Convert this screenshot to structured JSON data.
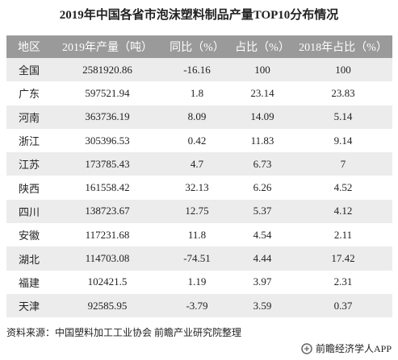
{
  "header": {
    "title": "2019年中国各省市泡沫塑料制品产量TOP10分布情况"
  },
  "table": {
    "columns": [
      "地区",
      "2019年产量（吨）",
      "同比（%）",
      "占比（%）",
      "2018年占比（%）"
    ],
    "rows": [
      [
        "全国",
        "2581920.86",
        "-16.16",
        "100",
        "100"
      ],
      [
        "广东",
        "597521.94",
        "1.8",
        "23.14",
        "23.83"
      ],
      [
        "河南",
        "363736.19",
        "8.09",
        "14.09",
        "5.14"
      ],
      [
        "浙江",
        "305396.53",
        "0.42",
        "11.83",
        "9.14"
      ],
      [
        "江苏",
        "173785.43",
        "4.7",
        "6.73",
        "7"
      ],
      [
        "陕西",
        "161558.42",
        "32.13",
        "6.26",
        "4.52"
      ],
      [
        "四川",
        "138723.67",
        "12.75",
        "5.37",
        "4.12"
      ],
      [
        "安徽",
        "117231.68",
        "11.8",
        "4.54",
        "2.11"
      ],
      [
        "湖北",
        "114703.08",
        "-74.51",
        "4.44",
        "17.42"
      ],
      [
        "福建",
        "102421.5",
        "1.19",
        "3.97",
        "2.31"
      ],
      [
        "天津",
        "92585.95",
        "-3.79",
        "3.59",
        "0.37"
      ]
    ]
  },
  "footer": {
    "source": "资料来源：中国塑料加工工业协会 前瞻产业研究院整理",
    "watermark": "前瞻经济学人APP"
  }
}
